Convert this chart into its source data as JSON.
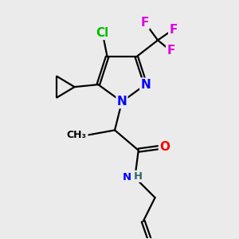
{
  "background_color": "#ebebeb",
  "bond_color": "#000000",
  "atom_colors": {
    "N": "#0000ff",
    "O": "#ff0000",
    "Cl": "#00bb00",
    "F": "#dd00dd",
    "H": "#336666",
    "C": "#000000"
  },
  "bond_lw": 1.6,
  "dbl_sep": 0.055,
  "font_size_atoms": 11,
  "font_size_small": 9.5,
  "figsize": [
    3.0,
    3.0
  ],
  "dpi": 100
}
